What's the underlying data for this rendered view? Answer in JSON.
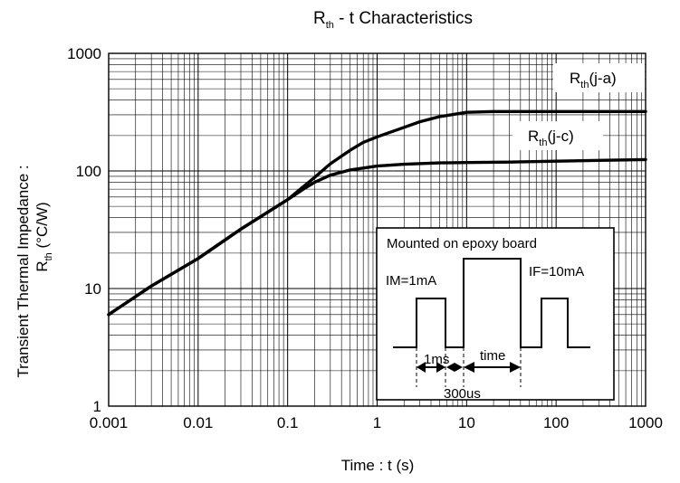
{
  "chart_data": {
    "type": "line",
    "title": {
      "main": "R",
      "sub": "th",
      "rest": " - t  Characteristics"
    },
    "xlabel": "Time : t (s)",
    "ylabel": {
      "line1": "Transient Thermal Impedance :",
      "main": "R",
      "sub": "th",
      "rest": "  (°C/W)"
    },
    "x_scale": "log",
    "y_scale": "log",
    "xlim": [
      0.001,
      1000
    ],
    "ylim": [
      1,
      1000
    ],
    "xticks": [
      "0.001",
      "0.01",
      "0.1",
      "1",
      "10",
      "100",
      "1000"
    ],
    "yticks": [
      "1",
      "10",
      "100",
      "1000"
    ],
    "grid": true,
    "series": [
      {
        "name": {
          "main": "R",
          "sub": "th",
          "rest": "(j-a)"
        },
        "x": [
          0.001,
          0.003,
          0.01,
          0.03,
          0.1,
          0.2,
          0.3,
          0.5,
          0.7,
          1,
          2,
          3,
          5,
          10,
          20,
          50,
          100,
          300,
          1000
        ],
        "y": [
          6,
          10.5,
          18,
          32,
          57,
          88,
          115,
          150,
          175,
          195,
          235,
          262,
          290,
          315,
          320,
          320,
          320,
          320,
          320
        ]
      },
      {
        "name": {
          "main": "R",
          "sub": "th",
          "rest": "(j-c)"
        },
        "x": [
          0.001,
          0.003,
          0.01,
          0.03,
          0.1,
          0.15,
          0.2,
          0.3,
          0.5,
          1,
          2,
          5,
          10,
          30,
          100,
          300,
          1000
        ],
        "y": [
          6,
          10.5,
          18,
          32,
          57,
          70,
          80,
          92,
          102,
          110,
          114,
          117,
          118,
          119,
          121,
          123,
          125
        ]
      }
    ],
    "inset": {
      "title": "Mounted on epoxy board",
      "labels": {
        "im": "IM=1mA",
        "if": "IF=10mA",
        "t1": "1ms",
        "t2": "300us",
        "t3": "time"
      }
    }
  }
}
